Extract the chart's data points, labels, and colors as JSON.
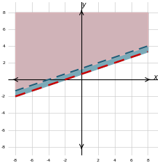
{
  "xlim": [
    -8,
    8
  ],
  "ylim": [
    -8,
    8
  ],
  "xticks": [
    -8,
    -6,
    -4,
    -2,
    0,
    2,
    4,
    6,
    8
  ],
  "yticks": [
    -8,
    -6,
    -4,
    -2,
    0,
    2,
    4,
    6,
    8
  ],
  "line1_slope": 0.3333333333,
  "line1_intercept": 0.6666666667,
  "line1_color": "#1a5f7a",
  "line1_shade_color": "#7baab8",
  "line2_slope": 0.3333333333,
  "line2_intercept": 1.3333333333,
  "line2_color": "#cc0000",
  "line2_shade_color": "#f5b8b8",
  "background_color": "#ffffff",
  "grid_color": "#cccccc"
}
